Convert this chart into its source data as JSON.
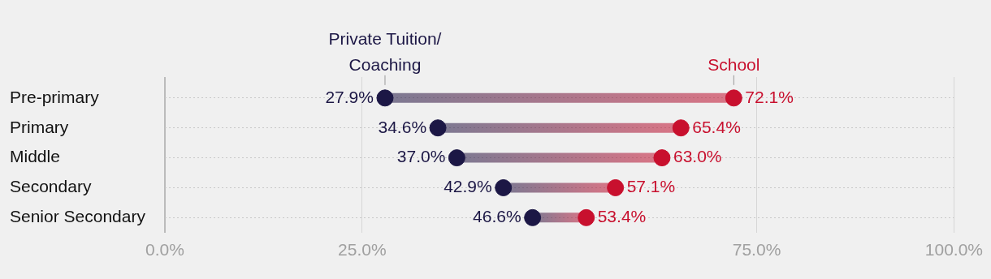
{
  "chart_data": {
    "type": "scatter",
    "orientation": "horizontal",
    "categories": [
      "Pre-primary",
      "Primary",
      "Middle",
      "Secondary",
      "Senior Secondary"
    ],
    "series": [
      {
        "name": "Private Tuition/ Coaching",
        "color": "#1c1745",
        "values": [
          27.9,
          34.6,
          37.0,
          42.9,
          46.6
        ],
        "value_labels": [
          "27.9%",
          "34.6%",
          "37.0%",
          "42.9%",
          "46.6%"
        ]
      },
      {
        "name": "School",
        "color": "#c8102e",
        "values": [
          72.1,
          65.4,
          63.0,
          57.1,
          53.4
        ],
        "value_labels": [
          "72.1%",
          "65.4%",
          "63.0%",
          "57.1%",
          "53.4%"
        ]
      }
    ],
    "xlim": [
      0,
      100
    ],
    "xticks": [
      {
        "value": 0,
        "label": "0.0%"
      },
      {
        "value": 25,
        "label": "25.0%"
      },
      {
        "value": 75,
        "label": "75.0%"
      },
      {
        "value": 100,
        "label": "100.0%"
      }
    ],
    "grid": true,
    "legend": false,
    "marker": "circle"
  }
}
